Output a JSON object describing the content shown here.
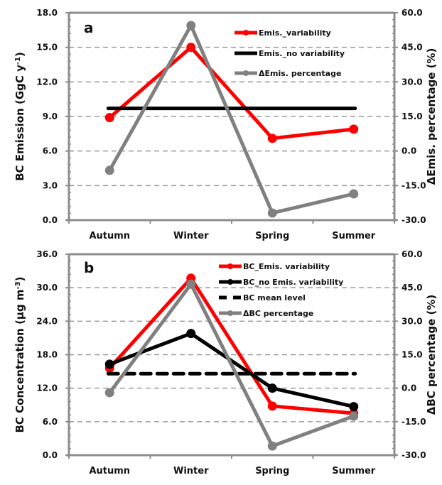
{
  "chart_data": [
    {
      "type": "line",
      "panel_label": "a",
      "categories": [
        "Autumn",
        "Winter",
        "Spring",
        "Summer"
      ],
      "ylabel": "BC Emission (GgC y",
      "ylabel_sup": "-1",
      "ylabel_end": ")",
      "y2label": "ΔEmis. percentage (%)",
      "ylim": [
        0,
        18
      ],
      "yticks": [
        "0.0",
        "3.0",
        "6.0",
        "9.0",
        "12.0",
        "15.0",
        "18.0"
      ],
      "y2lim": [
        -30,
        60
      ],
      "y2ticks": [
        "-30.0",
        "-15.0",
        "0.0",
        "15.0",
        "30.0",
        "45.0",
        "60.0"
      ],
      "grid": true,
      "legend_position": "top-right",
      "series": [
        {
          "name": "Emis._variability",
          "axis": "left",
          "color": "#ff0000",
          "style": "solid",
          "markers": true,
          "values": [
            8.9,
            15.0,
            7.1,
            7.9
          ]
        },
        {
          "name": "Emis._no variability",
          "axis": "left",
          "color": "#000000",
          "style": "solid",
          "markers": false,
          "values": [
            9.7,
            9.7,
            9.7,
            9.7
          ]
        },
        {
          "name": "ΔEmis. percentage",
          "axis": "right",
          "color": "#808080",
          "style": "solid",
          "markers": true,
          "values": [
            -8.4,
            54.5,
            -26.9,
            -18.6
          ]
        }
      ]
    },
    {
      "type": "line",
      "panel_label": "b",
      "categories": [
        "Autumn",
        "Winter",
        "Spring",
        "Summer"
      ],
      "ylabel": "BC Concentration (μg m",
      "ylabel_sup": "-3",
      "ylabel_end": ")",
      "y2label": "ΔBC percentage (%)",
      "ylim": [
        0,
        36
      ],
      "yticks": [
        "0.0",
        "6.0",
        "12.0",
        "18.0",
        "24.0",
        "30.0",
        "36.0"
      ],
      "y2lim": [
        -30,
        60
      ],
      "y2ticks": [
        "-30.0",
        "-15.0",
        "0.0",
        "15.0",
        "30.0",
        "45.0",
        "60.0"
      ],
      "grid": true,
      "legend_position": "top-right",
      "series": [
        {
          "name": "BC_Emis. variability",
          "axis": "left",
          "color": "#ff0000",
          "style": "solid",
          "markers": true,
          "values": [
            15.6,
            31.7,
            8.8,
            7.5
          ]
        },
        {
          "name": "BC_no Emis. variability",
          "axis": "left",
          "color": "#000000",
          "style": "solid",
          "markers": true,
          "values": [
            16.3,
            21.8,
            12.0,
            8.7
          ]
        },
        {
          "name": "BC mean level",
          "axis": "left",
          "color": "#000000",
          "style": "dashed",
          "markers": false,
          "values": [
            14.6,
            14.6,
            14.6,
            14.6
          ]
        },
        {
          "name": "ΔBC percentage",
          "axis": "right",
          "color": "#808080",
          "style": "solid",
          "markers": true,
          "values": [
            -2.0,
            46.6,
            -25.9,
            -12.5
          ]
        }
      ]
    }
  ]
}
